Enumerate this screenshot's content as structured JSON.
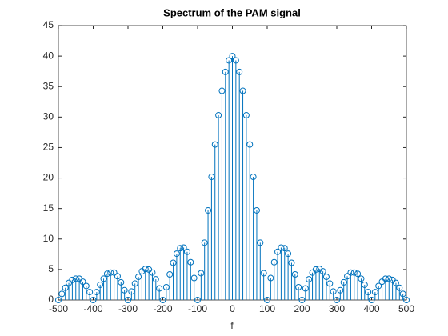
{
  "chart_data": {
    "type": "stem",
    "title": "Spectrum of the PAM signal",
    "xlabel": "f",
    "x": [
      -500,
      -490,
      -480,
      -470,
      -460,
      -450,
      -440,
      -430,
      -420,
      -410,
      -400,
      -390,
      -380,
      -370,
      -360,
      -350,
      -340,
      -330,
      -320,
      -310,
      -300,
      -290,
      -280,
      -270,
      -260,
      -250,
      -240,
      -230,
      -220,
      -210,
      -200,
      -190,
      -180,
      -170,
      -160,
      -150,
      -140,
      -130,
      -120,
      -110,
      -100,
      -90,
      -80,
      -70,
      -60,
      -50,
      -40,
      -30,
      -20,
      -10,
      0,
      10,
      20,
      30,
      40,
      50,
      60,
      70,
      80,
      90,
      100,
      110,
      120,
      130,
      140,
      150,
      160,
      170,
      180,
      190,
      200,
      210,
      220,
      230,
      240,
      250,
      260,
      270,
      280,
      290,
      300,
      310,
      320,
      330,
      340,
      350,
      360,
      370,
      380,
      390,
      400,
      410,
      420,
      430,
      440,
      450,
      460,
      470,
      480,
      490,
      500
    ],
    "values": [
      0,
      1.0,
      2.0,
      2.8,
      3.3,
      3.5,
      3.5,
      3.0,
      2.3,
      1.3,
      0,
      1.3,
      2.5,
      3.5,
      4.3,
      4.5,
      4.5,
      3.9,
      2.9,
      1.6,
      0,
      1.4,
      2.7,
      3.8,
      4.7,
      5.1,
      5.0,
      4.5,
      3.4,
      1.9,
      0,
      2.1,
      4.2,
      6.1,
      7.6,
      8.5,
      8.6,
      7.9,
      6.2,
      3.6,
      0,
      4.4,
      9.4,
      14.7,
      20.2,
      25.5,
      30.3,
      34.3,
      37.4,
      39.3,
      40,
      39.3,
      37.4,
      34.3,
      30.3,
      25.5,
      20.2,
      14.7,
      9.4,
      4.4,
      0,
      3.6,
      6.2,
      7.9,
      8.6,
      8.5,
      7.6,
      6.1,
      4.2,
      2.1,
      0,
      1.9,
      3.4,
      4.5,
      5.0,
      5.1,
      4.7,
      3.8,
      2.7,
      1.4,
      0,
      1.6,
      2.9,
      3.9,
      4.5,
      4.5,
      4.3,
      3.5,
      2.5,
      1.3,
      0,
      1.3,
      2.3,
      3.0,
      3.5,
      3.5,
      3.3,
      2.8,
      2.0,
      1.0,
      0
    ],
    "color": "#0072bd",
    "xlim": [
      -500,
      500
    ],
    "xticks": [
      -500,
      -400,
      -300,
      -200,
      -100,
      0,
      100,
      200,
      300,
      400,
      500
    ],
    "ylim": [
      0,
      45
    ],
    "yticks": [
      0,
      5,
      10,
      15,
      20,
      25,
      30,
      35,
      40,
      45
    ],
    "grid": false
  }
}
